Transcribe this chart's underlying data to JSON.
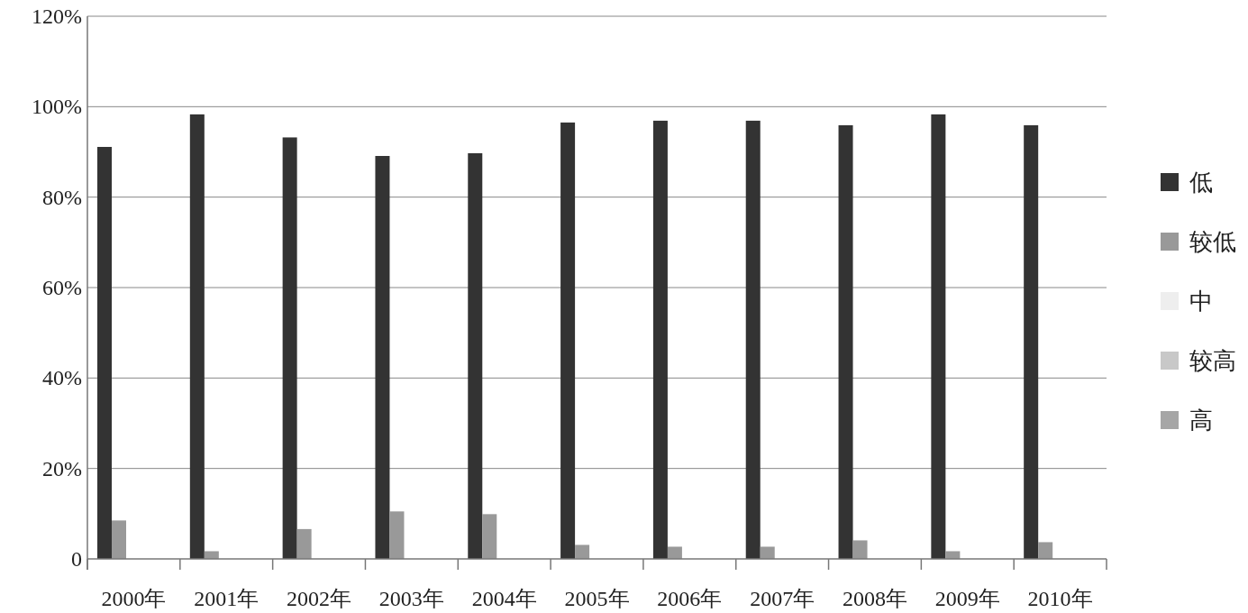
{
  "chart_data": {
    "type": "bar",
    "categories": [
      "2000年",
      "2001年",
      "2002年",
      "2003年",
      "2004年",
      "2005年",
      "2006年",
      "2007年",
      "2008年",
      "2009年",
      "2010年"
    ],
    "series": [
      {
        "name": "低",
        "color": "#333333",
        "values": [
          91.1,
          98.3,
          93.2,
          89.1,
          89.7,
          96.5,
          96.9,
          96.9,
          95.9,
          98.3,
          95.9
        ]
      },
      {
        "name": "较低",
        "color": "#999999",
        "values": [
          8.5,
          1.7,
          6.6,
          10.5,
          9.9,
          3.1,
          2.7,
          2.7,
          4.1,
          1.7,
          3.7
        ]
      },
      {
        "name": "中",
        "color": "#eeeeee",
        "values": [
          0,
          0,
          0,
          0,
          0,
          0,
          0,
          0,
          0,
          0,
          0
        ]
      },
      {
        "name": "较高",
        "color": "#c8c8c8",
        "values": [
          0,
          0,
          0,
          0,
          0,
          0,
          0,
          0,
          0,
          0,
          0
        ]
      },
      {
        "name": "高",
        "color": "#a6a6a6",
        "values": [
          0,
          0,
          0,
          0,
          0,
          0,
          0,
          0,
          0,
          0,
          0
        ]
      }
    ],
    "ylim": [
      0,
      120
    ],
    "yticks": [
      {
        "value": 0,
        "label": "0"
      },
      {
        "value": 20,
        "label": "20%"
      },
      {
        "value": 40,
        "label": "40%"
      },
      {
        "value": 60,
        "label": "60%"
      },
      {
        "value": 80,
        "label": "80%"
      },
      {
        "value": 100,
        "label": "100%"
      },
      {
        "value": 120,
        "label": "120%"
      }
    ],
    "grid": "y",
    "legend": "right"
  }
}
